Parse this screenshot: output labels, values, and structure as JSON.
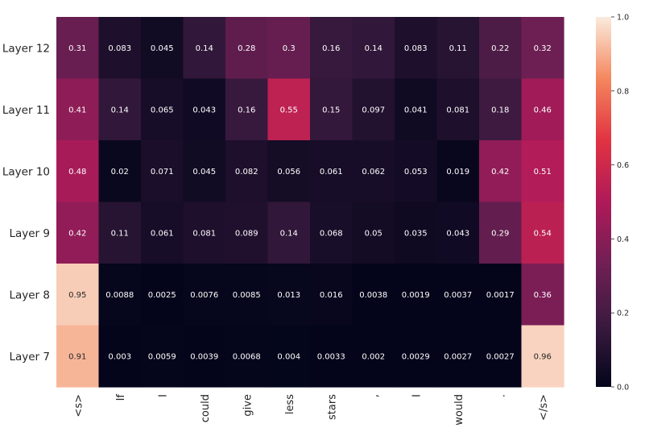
{
  "chart_data": {
    "type": "heatmap",
    "title": "",
    "xlabel": "",
    "ylabel": "",
    "x_categories": [
      "<s>",
      "If",
      "I",
      "could",
      "give",
      "less",
      "stars",
      ",",
      "I",
      "would",
      ".",
      "</s>"
    ],
    "y_categories": [
      "Layer 12",
      "Layer 11",
      "Layer 10",
      "Layer 9",
      "Layer 8",
      "Layer 7"
    ],
    "values": [
      [
        0.31,
        0.083,
        0.045,
        0.14,
        0.28,
        0.3,
        0.16,
        0.14,
        0.083,
        0.11,
        0.22,
        0.32
      ],
      [
        0.41,
        0.14,
        0.065,
        0.043,
        0.16,
        0.55,
        0.15,
        0.097,
        0.041,
        0.081,
        0.18,
        0.46
      ],
      [
        0.48,
        0.02,
        0.071,
        0.045,
        0.082,
        0.056,
        0.061,
        0.062,
        0.053,
        0.019,
        0.42,
        0.51
      ],
      [
        0.42,
        0.11,
        0.061,
        0.081,
        0.089,
        0.14,
        0.068,
        0.05,
        0.035,
        0.043,
        0.29,
        0.54
      ],
      [
        0.95,
        0.0088,
        0.0025,
        0.0076,
        0.0085,
        0.013,
        0.016,
        0.0038,
        0.0019,
        0.0037,
        0.0017,
        0.36
      ],
      [
        0.91,
        0.003,
        0.0059,
        0.0039,
        0.0068,
        0.004,
        0.0033,
        0.002,
        0.0029,
        0.0027,
        0.0027,
        0.96
      ]
    ],
    "labels": [
      [
        "0.31",
        "0.083",
        "0.045",
        "0.14",
        "0.28",
        "0.3",
        "0.16",
        "0.14",
        "0.083",
        "0.11",
        "0.22",
        "0.32"
      ],
      [
        "0.41",
        "0.14",
        "0.065",
        "0.043",
        "0.16",
        "0.55",
        "0.15",
        "0.097",
        "0.041",
        "0.081",
        "0.18",
        "0.46"
      ],
      [
        "0.48",
        "0.02",
        "0.071",
        "0.045",
        "0.082",
        "0.056",
        "0.061",
        "0.062",
        "0.053",
        "0.019",
        "0.42",
        "0.51"
      ],
      [
        "0.42",
        "0.11",
        "0.061",
        "0.081",
        "0.089",
        "0.14",
        "0.068",
        "0.05",
        "0.035",
        "0.043",
        "0.29",
        "0.54"
      ],
      [
        "0.95",
        "0.0088",
        "0.0025",
        "0.0076",
        "0.0085",
        "0.013",
        "0.016",
        "0.0038",
        "0.0019",
        "0.0037",
        "0.0017",
        "0.36"
      ],
      [
        "0.91",
        "0.003",
        "0.0059",
        "0.0039",
        "0.0068",
        "0.004",
        "0.0033",
        "0.002",
        "0.0029",
        "0.0027",
        "0.0027",
        "0.96"
      ]
    ],
    "colorbar": {
      "range": [
        0.0,
        1.0
      ],
      "ticks": [
        0.0,
        0.2,
        0.4,
        0.6,
        0.8,
        1.0
      ],
      "tick_labels": [
        "0.0",
        "0.2",
        "0.4",
        "0.6",
        "0.8",
        "1.0"
      ]
    },
    "colormap": "rocket",
    "colormap_stops": [
      "#03051a",
      "#3a1a3f",
      "#711f55",
      "#af1a59",
      "#e13342",
      "#f4875e",
      "#faebdd"
    ]
  }
}
